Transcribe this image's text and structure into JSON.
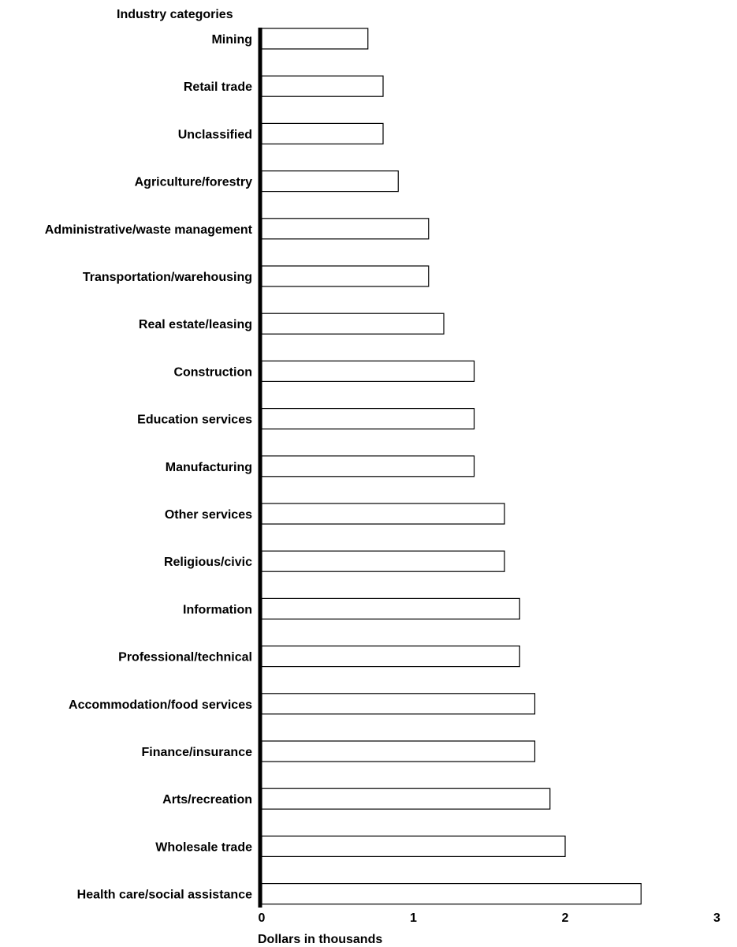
{
  "chart_data": {
    "type": "bar",
    "orientation": "horizontal",
    "y_axis_title": "Industry categories",
    "x_axis_title": "Dollars in thousands",
    "xlim": [
      0,
      3
    ],
    "x_ticks": [
      "0",
      "1",
      "2",
      "3"
    ],
    "grid": false,
    "legend": "none",
    "categories": [
      "Mining",
      "Retail trade",
      "Unclassified",
      "Agriculture/forestry",
      "Administrative/waste management",
      "Transportation/warehousing",
      "Real estate/leasing",
      "Construction",
      "Education services",
      "Manufacturing",
      "Other services",
      "Religious/civic",
      "Information",
      "Professional/technical",
      "Accommodation/food services",
      "Finance/insurance",
      "Arts/recreation",
      "Wholesale trade",
      "Health care/social assistance"
    ],
    "values": [
      0.7,
      0.8,
      0.8,
      0.9,
      1.1,
      1.1,
      1.2,
      1.4,
      1.4,
      1.4,
      1.6,
      1.6,
      1.7,
      1.7,
      1.8,
      1.8,
      1.9,
      2.0,
      2.5
    ],
    "colors": {
      "bar_fill": "#ffffff",
      "bar_stroke": "#000000",
      "axis": "#000000",
      "text": "#000000"
    }
  }
}
